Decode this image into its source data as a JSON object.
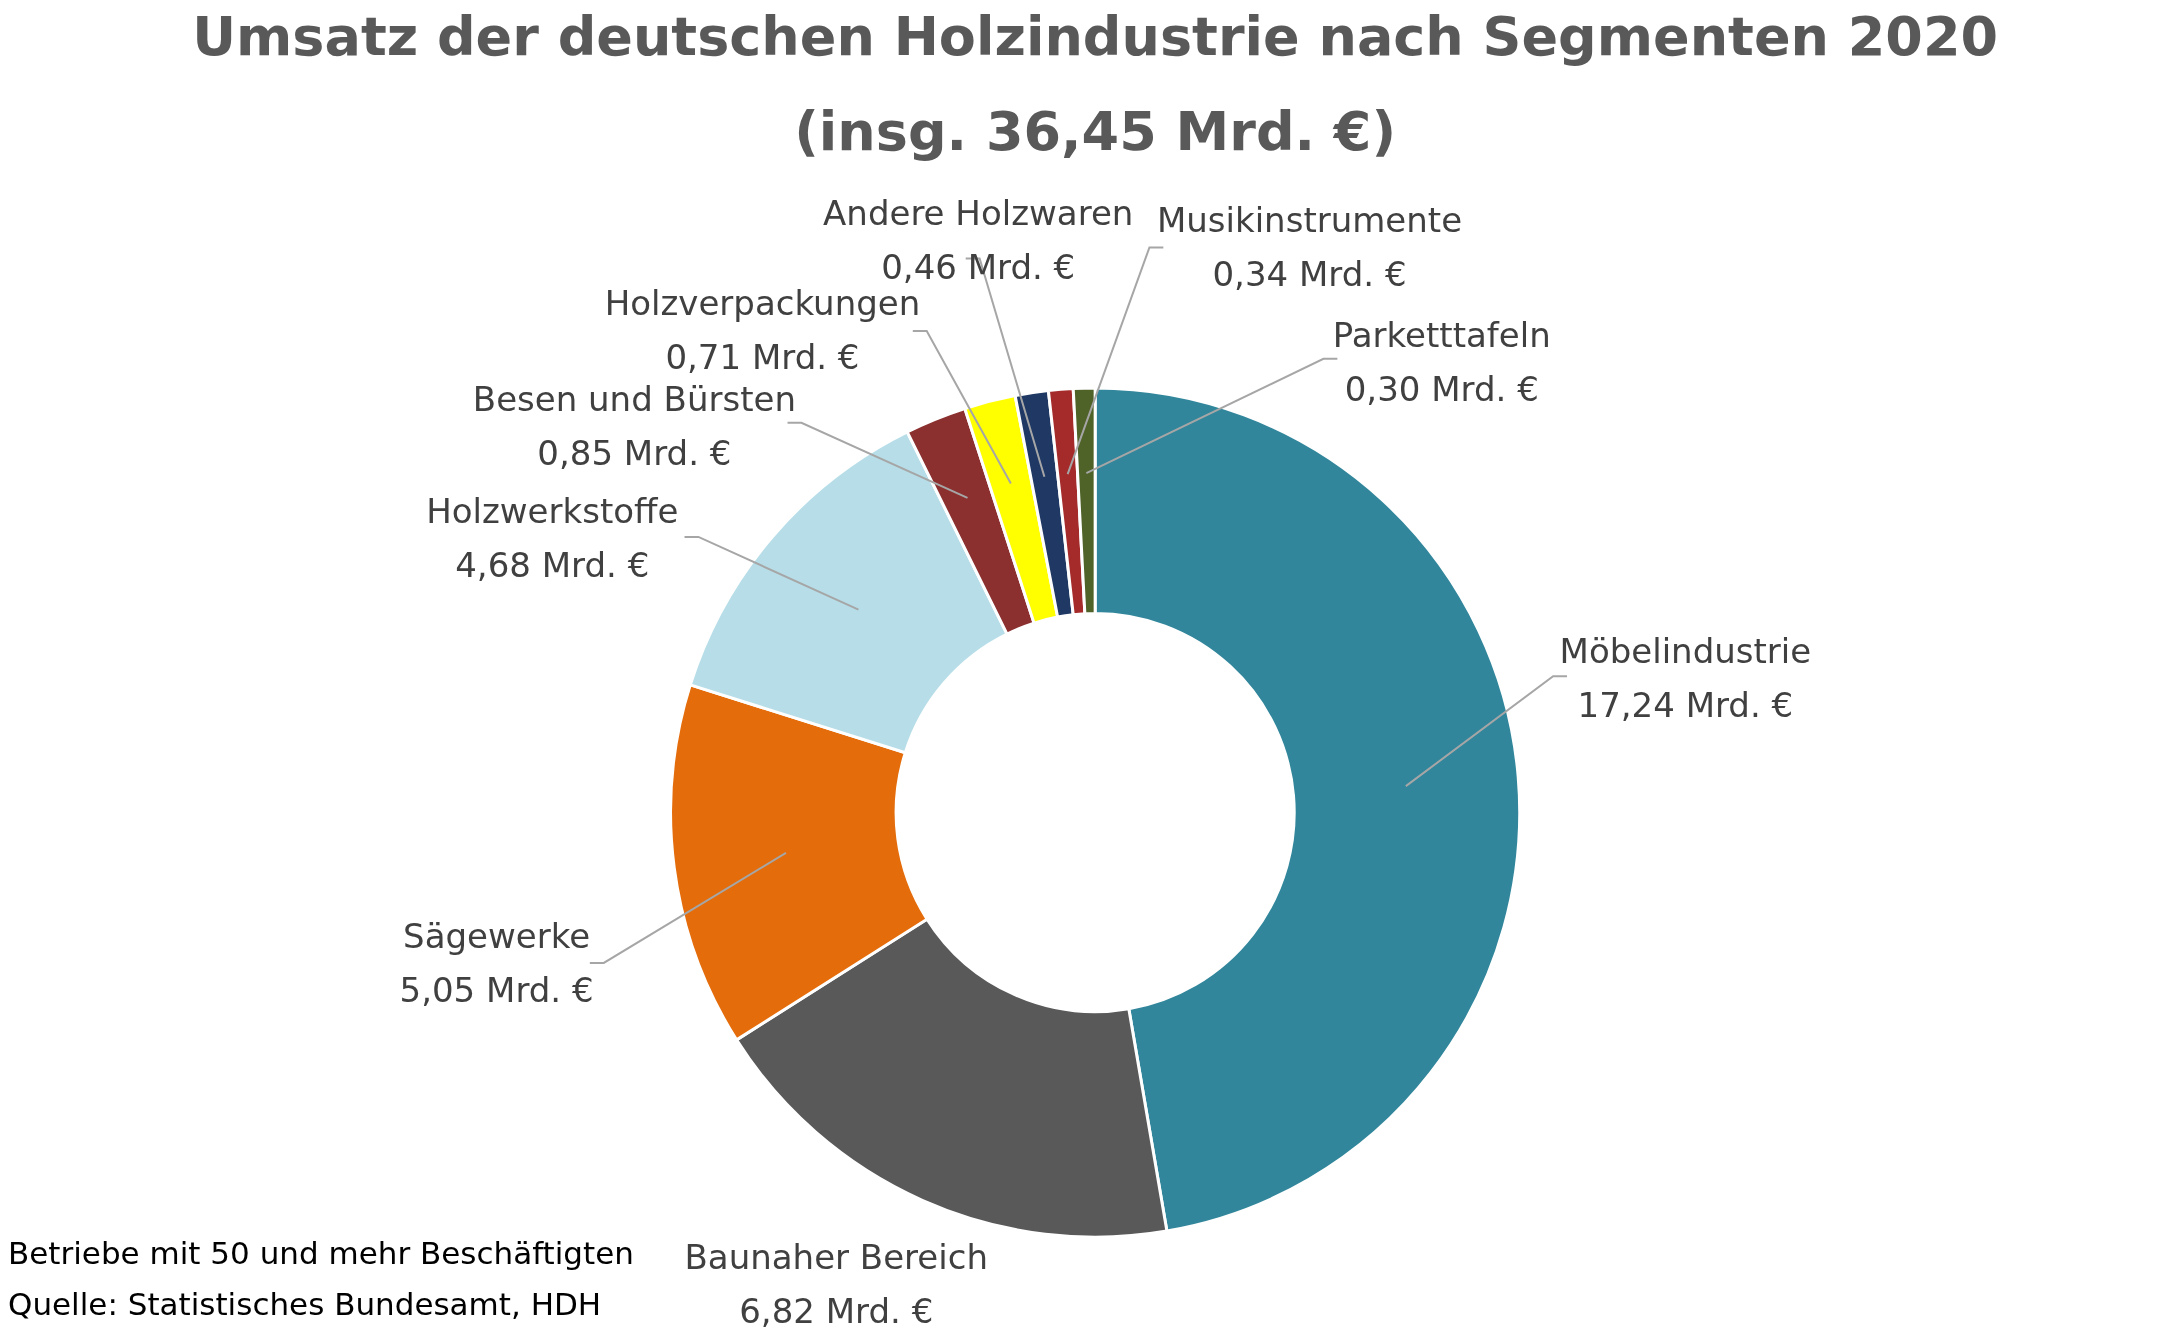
{
  "chart_data": {
    "type": "donut",
    "title": "Umsatz der deutschen Holzindustrie nach Segmenten 2020",
    "subtitle": "(insg. 36,45 Mrd. €)",
    "categories": [
      "Möbelindustrie",
      "Baunaher  Bereich",
      "Sägewerke",
      "Holzwerkstoffe",
      "Besen und Bürsten",
      "Holzverpackungen",
      "Andere  Holzwaren",
      "Musikinstrumente",
      "Parketttafeln"
    ],
    "values": [
      17.24,
      6.82,
      5.05,
      4.68,
      0.85,
      0.71,
      0.46,
      0.34,
      0.3
    ],
    "colors": [
      "#31869b",
      "#595959",
      "#e46c0a",
      "#b7dee8",
      "#8b2f2f",
      "#ffff00",
      "#1f3864",
      "#a52a2a",
      "#4f6228"
    ],
    "value_labels": [
      "17,24 Mrd. €",
      "6,82 Mrd. €",
      "5,05 Mrd. €",
      "4,68 Mrd. €",
      "0,85 Mrd. €",
      "0,71 Mrd. €",
      "0,46 Mrd. €",
      "0,34 Mrd. €",
      "0,30 Mrd. €"
    ],
    "annotations": [
      "Betriebe mit 50 und mehr Beschäftigten",
      "Quelle: Statistisches Bundesamt, HDH"
    ]
  }
}
